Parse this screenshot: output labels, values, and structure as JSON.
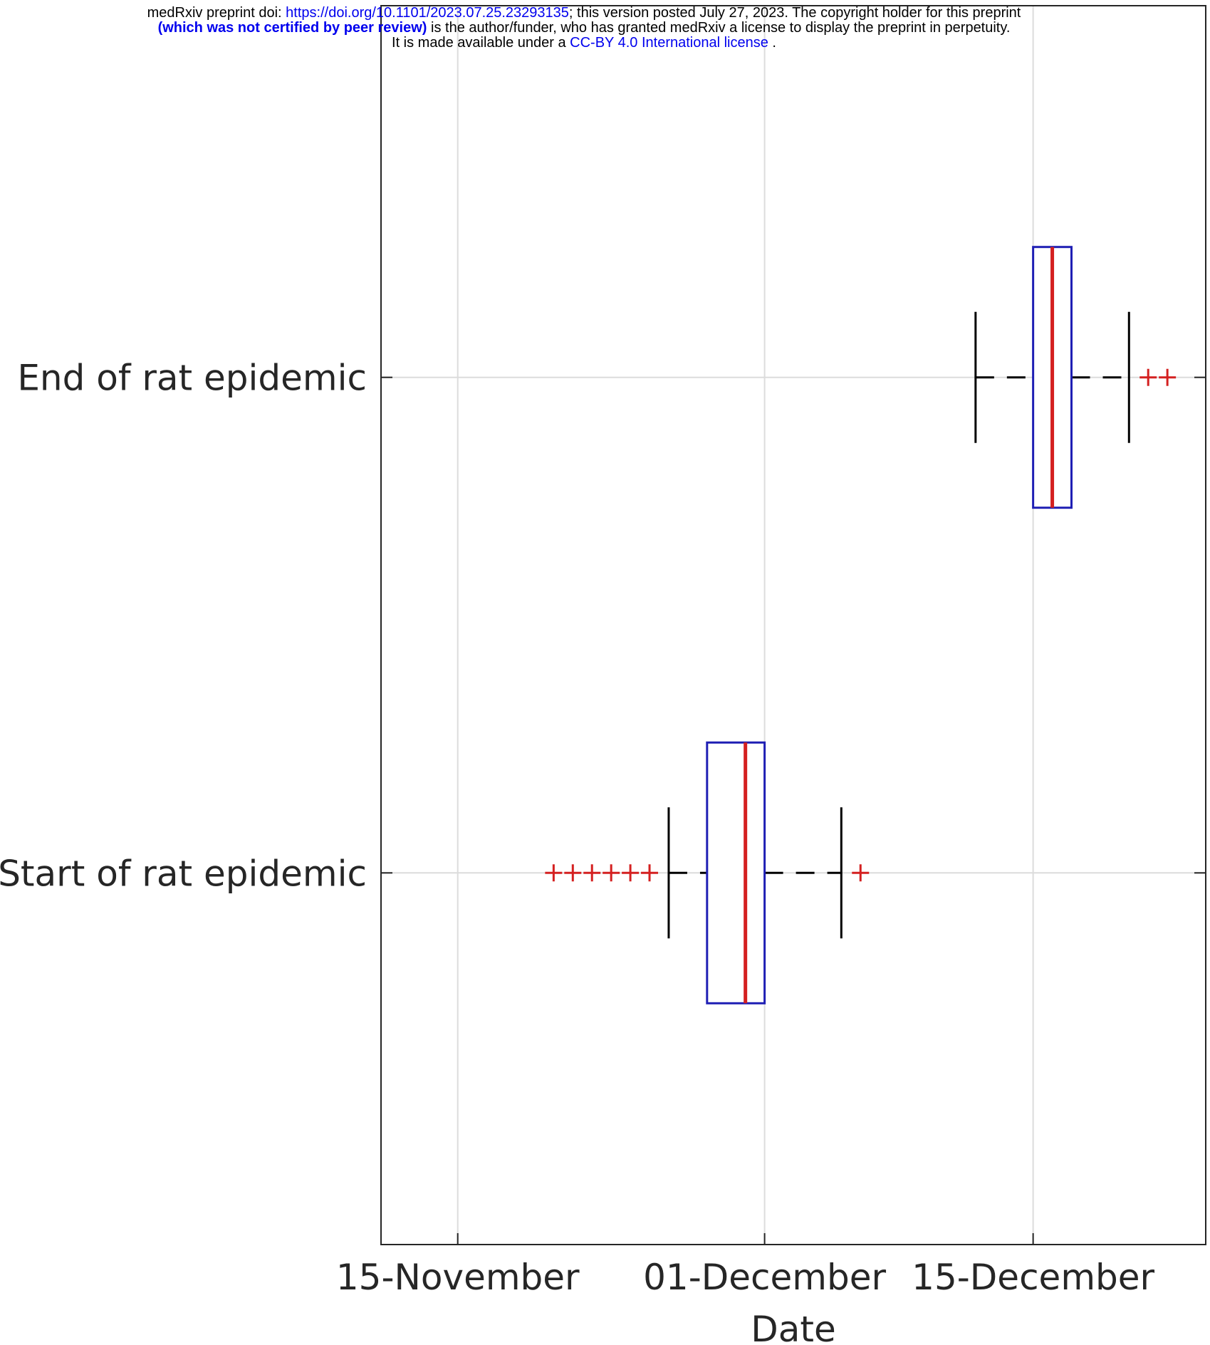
{
  "header": {
    "line1_prefix": "medRxiv preprint doi: ",
    "doi_link": "https://doi.org/10.1101/2023.07.25.23293135",
    "line1_suffix": "; this version posted July 27, 2023. The copyright holder for this preprint",
    "peer_review": "(which was not certified by peer review)",
    "line2_suffix": " is the author/funder, who has granted medRxiv a license to display the preprint in perpetuity.",
    "line3_prefix": "It is made available under a ",
    "license_link": "CC-BY 4.0 International license",
    "line3_suffix": " ."
  },
  "chart_data": {
    "type": "boxplot",
    "orientation": "horizontal",
    "xlabel": "Date",
    "ylabel": "",
    "x_axis_type": "date",
    "xlim": [
      "2023-11-11",
      "2023-12-24"
    ],
    "x_ticks": [
      {
        "date": "2023-11-15",
        "label": "15-November"
      },
      {
        "date": "2023-12-01",
        "label": "01-December"
      },
      {
        "date": "2023-12-15",
        "label": "15-December"
      }
    ],
    "grid": true,
    "colors": {
      "box": "#1f1fb4",
      "median": "#d42020",
      "whisker": "#000000",
      "outlier": "#d42020",
      "grid": "#dcdcdc"
    },
    "boxes": [
      {
        "label": "Start of rat epidemic",
        "whisker_low": "2023-11-26",
        "q1": "2023-11-28",
        "median": "2023-11-30",
        "q3": "2023-12-01",
        "whisker_high": "2023-12-05",
        "outliers": [
          "2023-11-20",
          "2023-11-21",
          "2023-11-22",
          "2023-11-23",
          "2023-11-24",
          "2023-11-25",
          "2023-12-06"
        ]
      },
      {
        "label": "End of rat epidemic",
        "whisker_low": "2023-12-12",
        "q1": "2023-12-15",
        "median": "2023-12-16",
        "q3": "2023-12-17",
        "whisker_high": "2023-12-20",
        "outliers": [
          "2023-12-21",
          "2023-12-22"
        ]
      }
    ]
  }
}
